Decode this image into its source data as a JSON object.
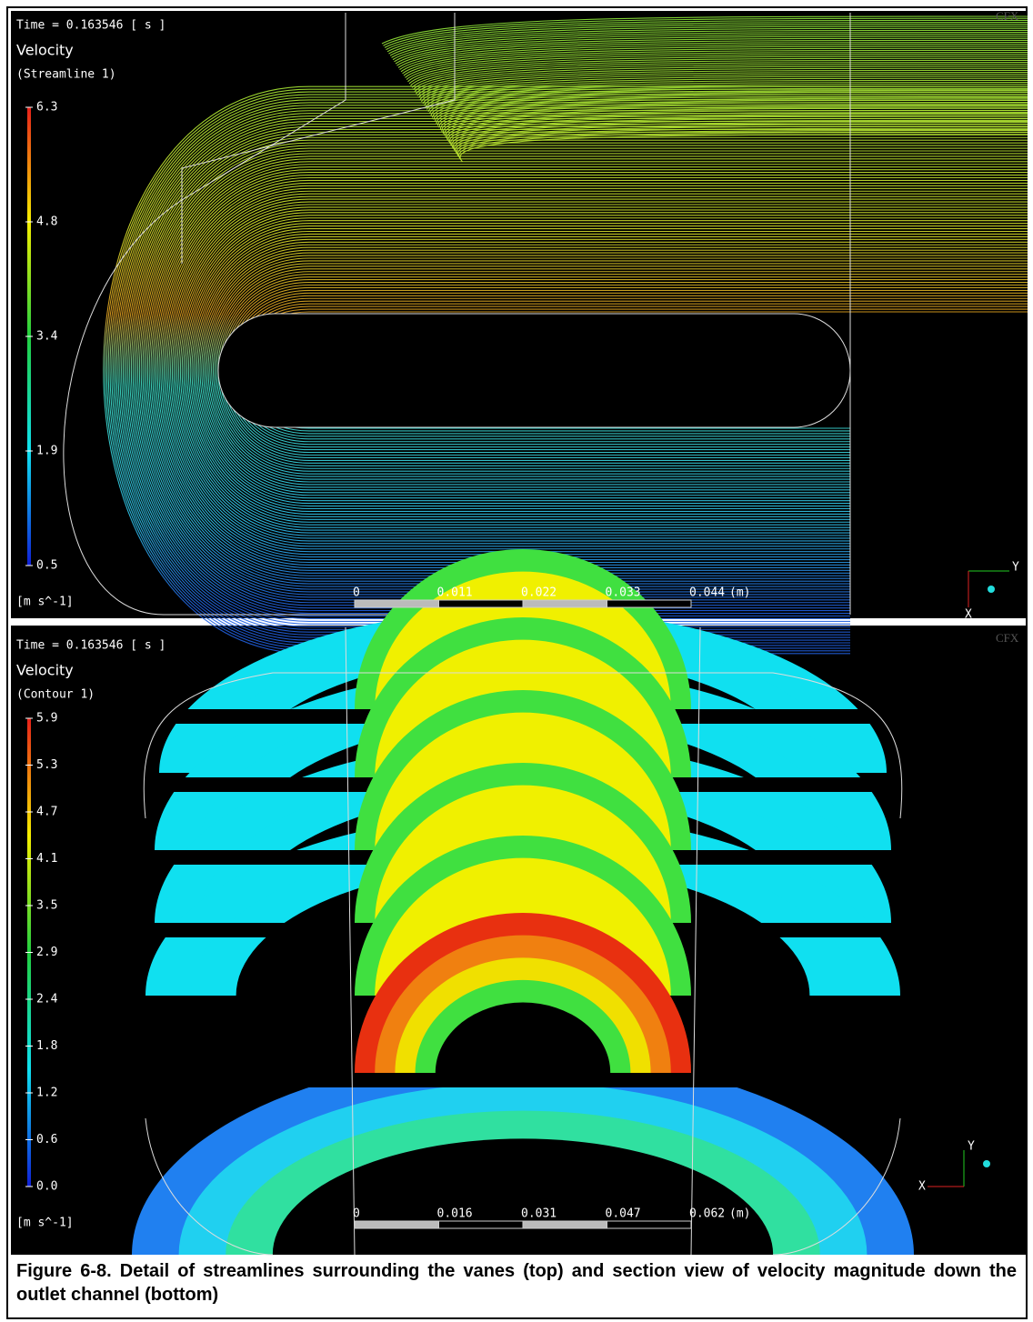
{
  "top_panel": {
    "time_label": "Time = 0.163546 [ s ]",
    "variable": "Velocity",
    "object": "(Streamline 1)",
    "legend_ticks": [
      "6.3",
      "4.8",
      "3.4",
      "1.9",
      "0.5"
    ],
    "units": "[m s^-1]",
    "scale_ticks": [
      "0",
      "0.011",
      "0.022",
      "0.033",
      "0.044"
    ],
    "scale_unit": "(m)",
    "logo": "CFX",
    "axis_labels": [
      "Y",
      "X"
    ]
  },
  "bottom_panel": {
    "time_label": "Time = 0.163546 [ s ]",
    "variable": "Velocity",
    "object": "(Contour 1)",
    "legend_ticks": [
      "5.9",
      "5.3",
      "4.7",
      "4.1",
      "3.5",
      "2.9",
      "2.4",
      "1.8",
      "1.2",
      "0.6",
      "0.0"
    ],
    "units": "[m s^-1]",
    "scale_ticks": [
      "0",
      "0.016",
      "0.031",
      "0.047",
      "0.062"
    ],
    "scale_unit": "(m)",
    "logo": "CFX",
    "axis_labels": [
      "Y",
      "X"
    ]
  },
  "caption": "Figure 6-8. Detail of streamlines surrounding the vanes (top) and section view of velocity magnitude down the outlet channel (bottom)"
}
